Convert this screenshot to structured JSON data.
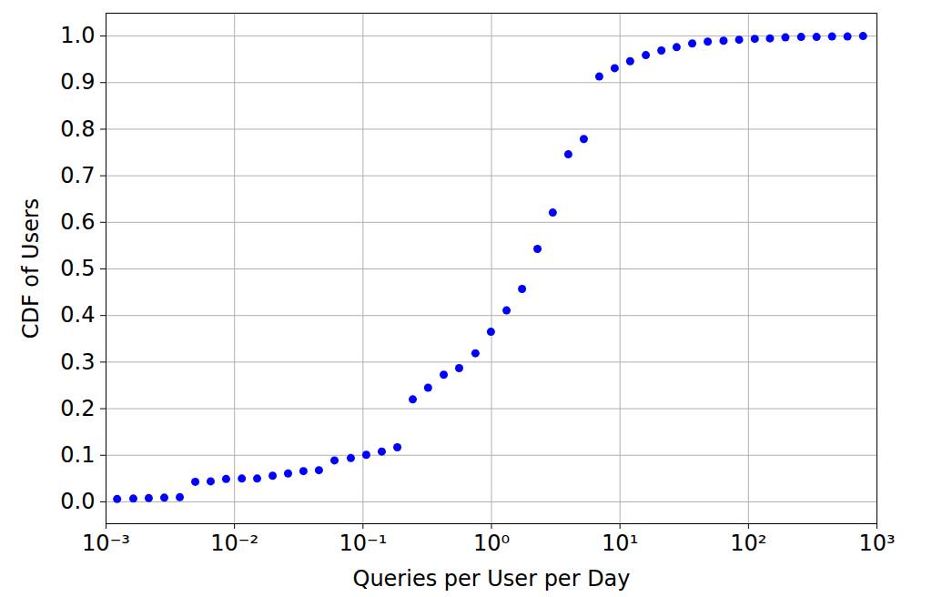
{
  "chart_data": {
    "type": "scatter",
    "x_label": "Queries per User per Day",
    "y_label": "CDF of Users",
    "log": "x",
    "grid": true,
    "color": "#0000ff",
    "marker": "circle",
    "xlim": [
      0.001,
      1000
    ],
    "ylim": [
      -0.047,
      1.049
    ],
    "xticks": [
      {
        "value": 0.001,
        "label": "10⁻³"
      },
      {
        "value": 0.01,
        "label": "10⁻²"
      },
      {
        "value": 0.1,
        "label": "10⁻¹"
      },
      {
        "value": 1,
        "label": "10⁰"
      },
      {
        "value": 10,
        "label": "10¹"
      },
      {
        "value": 100,
        "label": "10²"
      },
      {
        "value": 1000,
        "label": "10³"
      }
    ],
    "yticks": [
      {
        "value": 0,
        "label": "0.0"
      },
      0.1,
      0.2,
      0.3,
      0.4,
      0.5,
      0.6,
      0.7,
      0.8,
      0.9,
      {
        "value": 1,
        "label": "1.0"
      }
    ],
    "x": [
      0.00122,
      0.00163,
      0.00215,
      0.00284,
      0.00375,
      0.00495,
      0.00652,
      0.0086,
      0.0114,
      0.015,
      0.0198,
      0.0261,
      0.0344,
      0.0454,
      0.06,
      0.0804,
      0.106,
      0.14,
      0.185,
      0.244,
      0.321,
      0.425,
      0.56,
      0.75,
      0.99,
      1.31,
      1.73,
      2.28,
      3.0,
      3.96,
      5.23,
      6.9,
      9.1,
      12.0,
      15.9,
      21.0,
      27.6,
      36.5,
      48.2,
      64.0,
      84.6,
      112,
      147,
      194,
      257,
      339,
      447,
      590,
      780
    ],
    "values": [
      0.006,
      0.007,
      0.008,
      0.009,
      0.01,
      0.043,
      0.044,
      0.049,
      0.05,
      0.05,
      0.056,
      0.061,
      0.066,
      0.068,
      0.089,
      0.094,
      0.101,
      0.108,
      0.117,
      0.22,
      0.245,
      0.273,
      0.287,
      0.319,
      0.365,
      0.411,
      0.457,
      0.543,
      0.621,
      0.746,
      0.779,
      0.913,
      0.931,
      0.946,
      0.959,
      0.969,
      0.976,
      0.984,
      0.988,
      0.99,
      0.992,
      0.994,
      0.995,
      0.997,
      0.998,
      0.998,
      0.999,
      0.999,
      1.0
    ]
  }
}
